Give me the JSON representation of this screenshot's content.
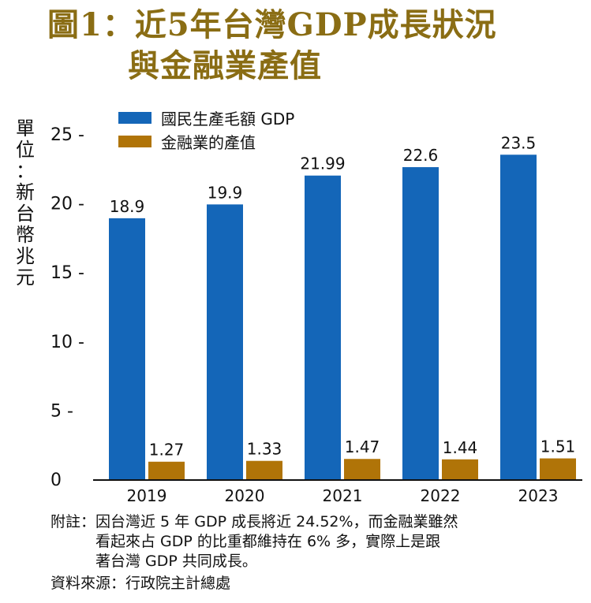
{
  "title_line1": "圖1：近5年台灣GDP成長狀況",
  "title_line2": "與金融業產值",
  "colors": {
    "title": "#8a6d14",
    "gdp": "#1466b8",
    "finance": "#b07408"
  },
  "chart_data": {
    "type": "bar",
    "categories": [
      "2019",
      "2020",
      "2021",
      "2022",
      "2023"
    ],
    "series": [
      {
        "name": "國民生產毛額 GDP",
        "values": [
          18.9,
          19.9,
          21.99,
          22.6,
          23.5
        ],
        "labels": [
          "18.9",
          "19.9",
          "21.99",
          "22.6",
          "23.5"
        ]
      },
      {
        "name": "金融業的產值",
        "values": [
          1.27,
          1.33,
          1.47,
          1.44,
          1.51
        ],
        "labels": [
          "1.27",
          "1.33",
          "1.47",
          "1.44",
          "1.51"
        ]
      }
    ],
    "ylabel_chars": [
      "單",
      "位",
      "：",
      "新",
      "台",
      "幣",
      "兆",
      "元"
    ],
    "ylim": [
      0,
      25
    ],
    "yticks": [
      0,
      5,
      10,
      15,
      20,
      25
    ],
    "ytick_labels": [
      "0",
      "5 -",
      "10 -",
      "15 -",
      "20 -",
      "25 -"
    ],
    "grid": false,
    "legend_position": "top-left"
  },
  "note": {
    "label": "附註：",
    "lines": [
      "因台灣近 5 年 GDP 成長將近 24.52%，而金融業雖然",
      "看起來占 GDP 的比重都維持在 6% 多，實際上是跟",
      "著台灣 GDP 共同成長。"
    ]
  },
  "source": "資料來源：行政院主計總處"
}
